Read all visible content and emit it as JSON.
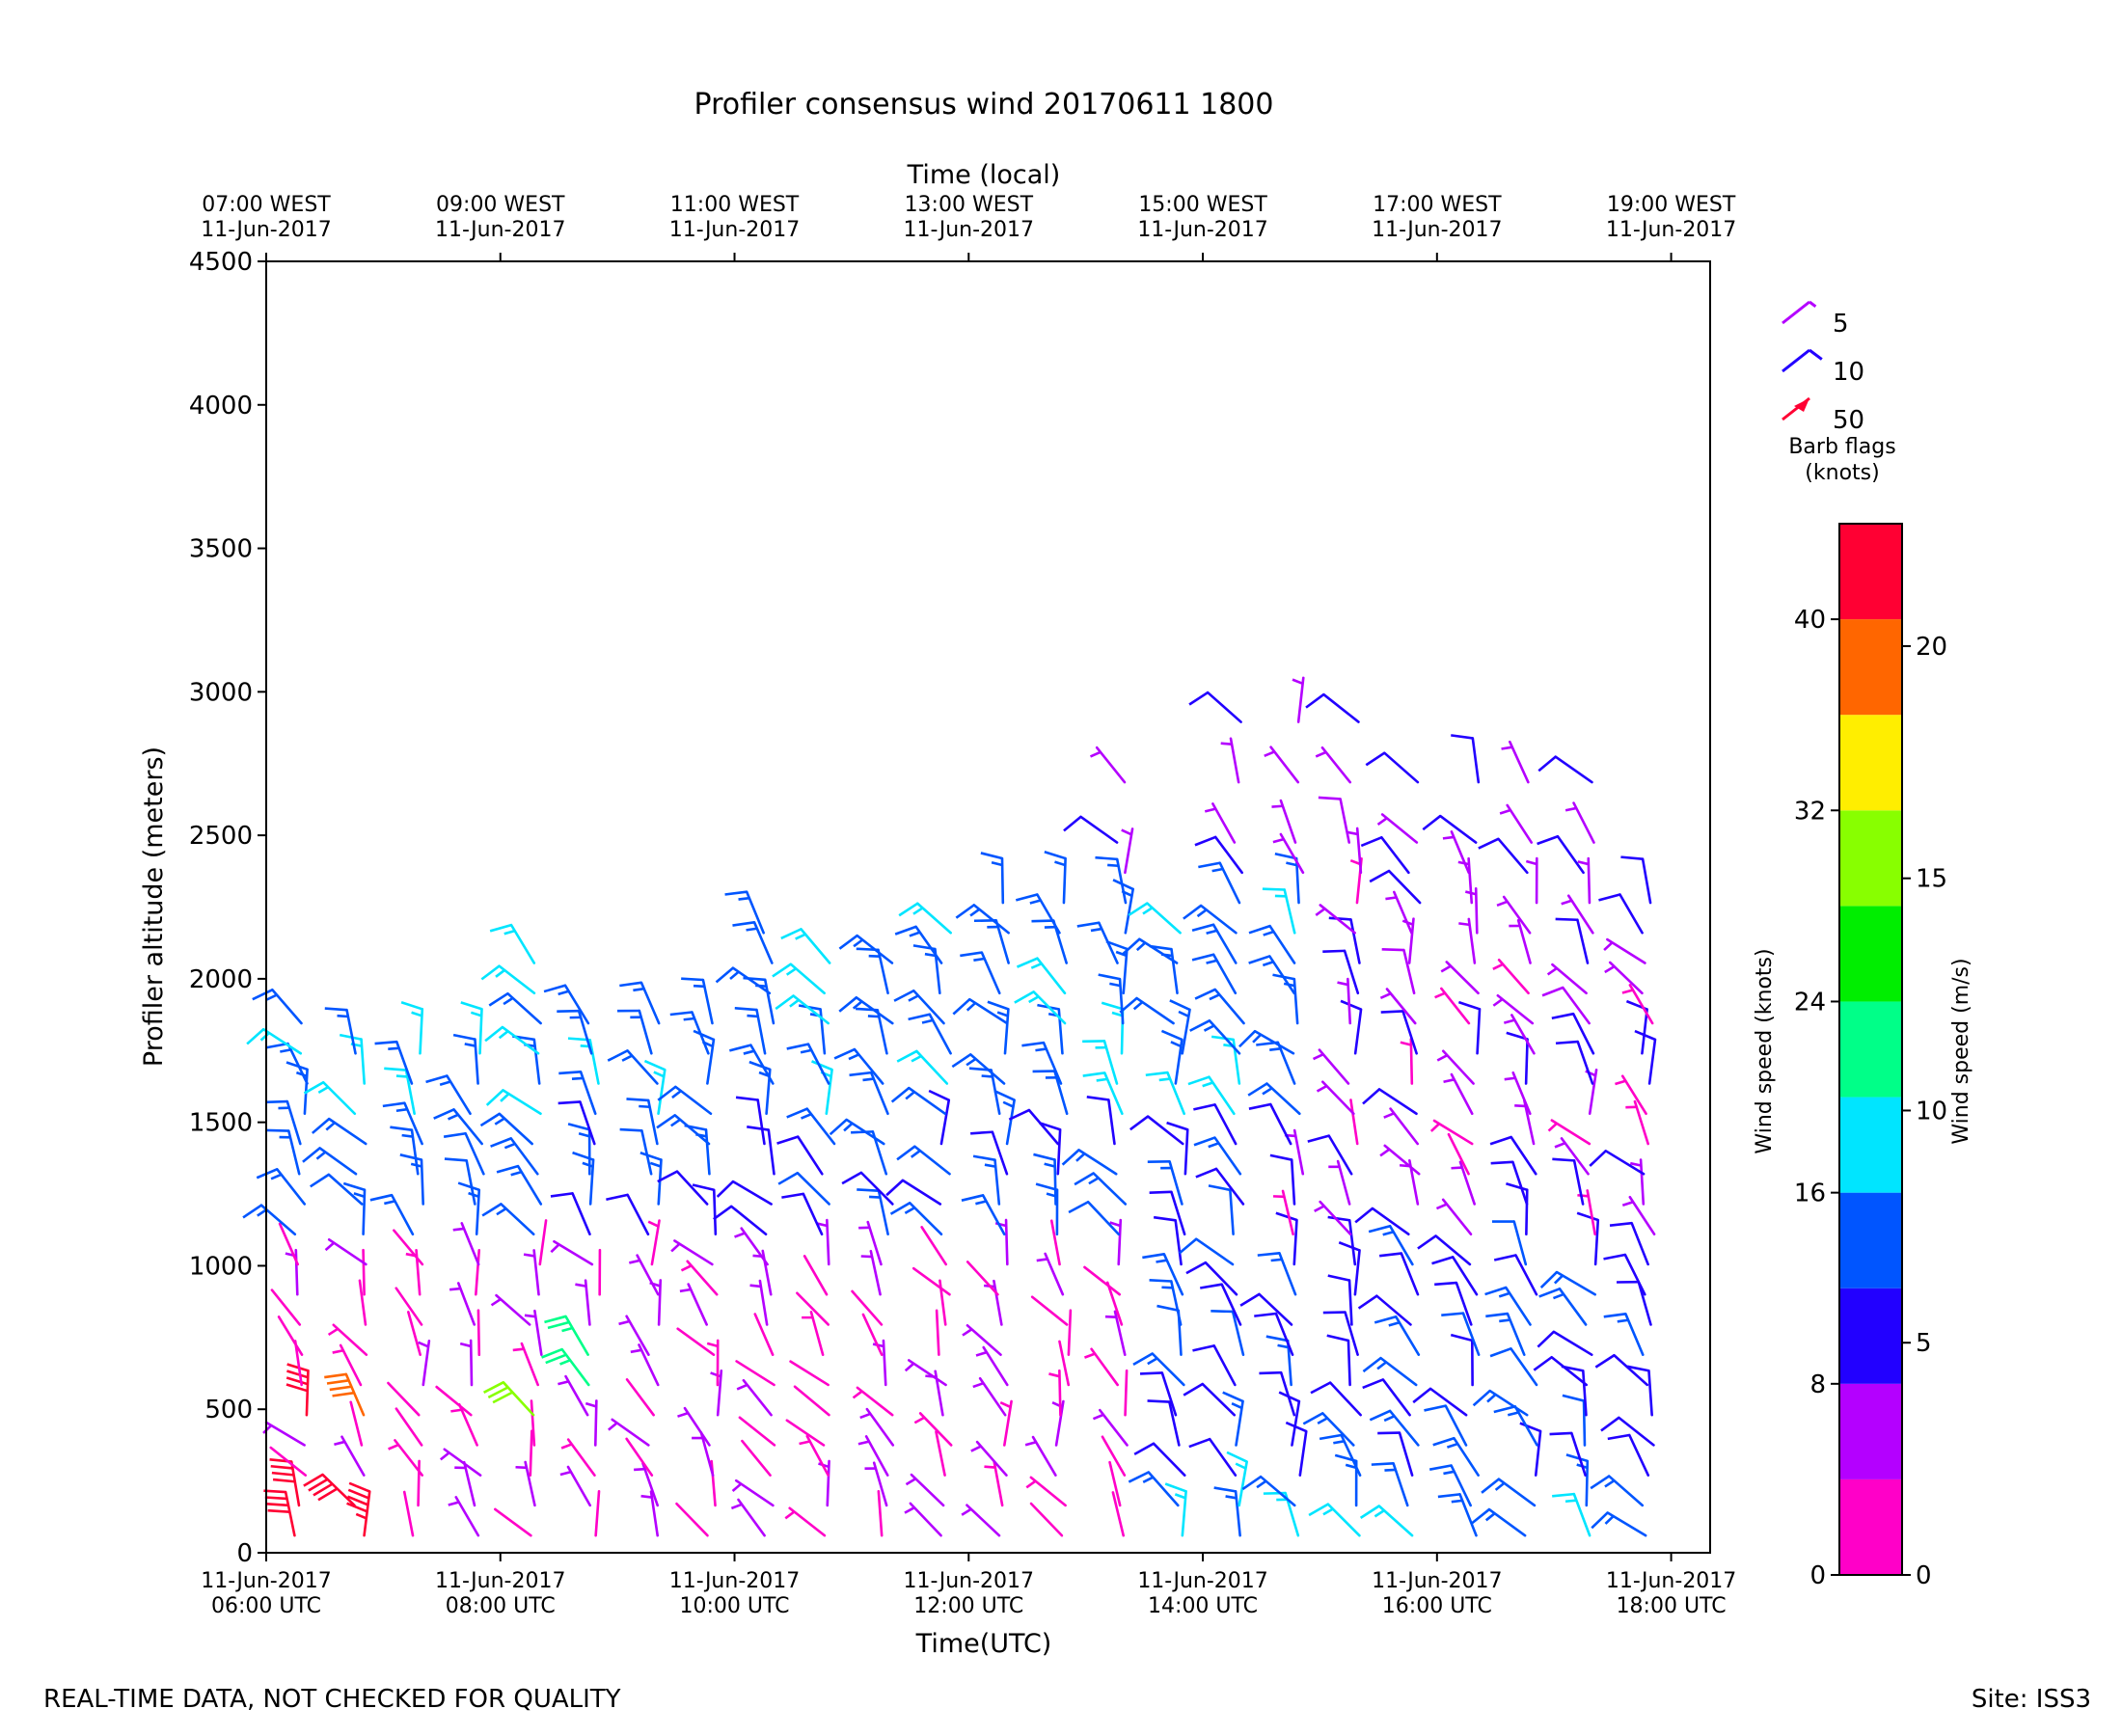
{
  "chart_data": {
    "type": "wind-barb",
    "title": "Profiler consensus wind 20170611 1800",
    "xlabel_top": "Time (local)",
    "xlabel": "Time(UTC)",
    "ylabel": "Profiler altitude (meters)",
    "ylim": [
      0,
      4500
    ],
    "yticks": [
      "0",
      "500",
      "1000",
      "1500",
      "2000",
      "2500",
      "3000",
      "3500",
      "4000",
      "4500"
    ],
    "xlim_hours_utc": [
      6.0,
      18.333
    ],
    "bottom_ticks": [
      {
        "t": 6,
        "l1": "11-Jun-2017",
        "l2": "06:00 UTC"
      },
      {
        "t": 8,
        "l1": "11-Jun-2017",
        "l2": "08:00 UTC"
      },
      {
        "t": 10,
        "l1": "11-Jun-2017",
        "l2": "10:00 UTC"
      },
      {
        "t": 12,
        "l1": "11-Jun-2017",
        "l2": "12:00 UTC"
      },
      {
        "t": 14,
        "l1": "11-Jun-2017",
        "l2": "14:00 UTC"
      },
      {
        "t": 16,
        "l1": "11-Jun-2017",
        "l2": "16:00 UTC"
      },
      {
        "t": 18,
        "l1": "11-Jun-2017",
        "l2": "18:00 UTC"
      }
    ],
    "top_ticks": [
      {
        "t": 6,
        "l1": "07:00 WEST",
        "l2": "11-Jun-2017"
      },
      {
        "t": 8,
        "l1": "09:00 WEST",
        "l2": "11-Jun-2017"
      },
      {
        "t": 10,
        "l1": "11:00 WEST",
        "l2": "11-Jun-2017"
      },
      {
        "t": 12,
        "l1": "13:00 WEST",
        "l2": "11-Jun-2017"
      },
      {
        "t": 14,
        "l1": "15:00 WEST",
        "l2": "11-Jun-2017"
      },
      {
        "t": 16,
        "l1": "17:00 WEST",
        "l2": "11-Jun-2017"
      },
      {
        "t": 18,
        "l1": "19:00 WEST",
        "l2": "11-Jun-2017"
      }
    ],
    "columns_utc": [
      6.3,
      6.8,
      7.3,
      7.8,
      8.3,
      8.8,
      9.3,
      9.8,
      10.3,
      10.8,
      11.3,
      11.8,
      12.3,
      12.8,
      13.3,
      13.8,
      14.3,
      14.8,
      15.3,
      15.8,
      16.3,
      16.8,
      17.3,
      17.8
    ],
    "profiles": {
      "lowest_height_m": 60,
      "gate_spacing_m": 105,
      "top_height_m": [
        1940,
        1840,
        1840,
        1840,
        2150,
        1940,
        1940,
        1940,
        2250,
        2150,
        2150,
        2250,
        2350,
        2350,
        2750,
        2250,
        2950,
        2950,
        2950,
        2850,
        2850,
        2850,
        2850,
        2350
      ]
    },
    "color_scale": {
      "label_knots": "Wind speed (knots)",
      "label_ms": "Wind speed (m/s)",
      "boundaries_knots": [
        0,
        4,
        8,
        12,
        16,
        20,
        24,
        28,
        32,
        36,
        40,
        44
      ],
      "colors": [
        "#ff00c8",
        "#b400ff",
        "#2200ff",
        "#0055ff",
        "#00e5ff",
        "#00ff88",
        "#00ee00",
        "#88ff00",
        "#ffee00",
        "#ff6600",
        "#ff0033"
      ],
      "ticks_knots": [
        "0",
        "8",
        "16",
        "24",
        "32",
        "40"
      ],
      "ticks_ms": [
        "0",
        "5",
        "10",
        "15",
        "20"
      ]
    },
    "legend": {
      "items": [
        {
          "label": "5",
          "color": "#b400ff"
        },
        {
          "label": "10",
          "color": "#2200ff"
        },
        {
          "label": "50",
          "color": "#ff0033"
        }
      ],
      "caption_line1": "Barb flags",
      "caption_line2": "(knots)",
      "placement": "right"
    }
  },
  "footer": {
    "left": "REAL-TIME DATA, NOT CHECKED FOR QUALITY",
    "right": "Site: ISS3"
  }
}
